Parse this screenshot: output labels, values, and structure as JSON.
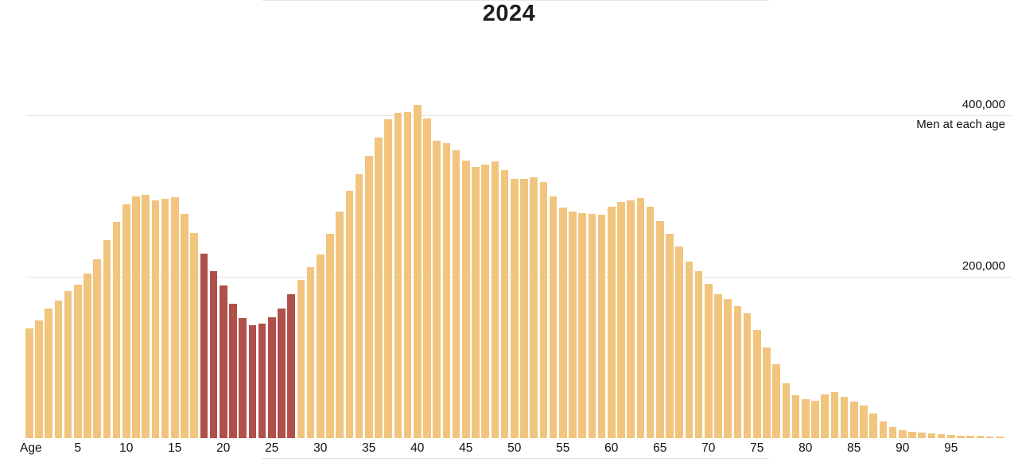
{
  "page": {
    "title": "2024"
  },
  "chart_data": {
    "type": "bar",
    "title": "2024",
    "x_axis_label": "Age",
    "series_label": "Men at each age",
    "x_ticks": [
      5,
      10,
      15,
      20,
      25,
      30,
      35,
      40,
      45,
      50,
      55,
      60,
      65,
      70,
      75,
      80,
      85,
      90,
      95
    ],
    "y_gridlines": [
      {
        "value": 200000,
        "label": "200,000"
      },
      {
        "value": 400000,
        "label": "400,000"
      }
    ],
    "xlim": [
      0,
      100
    ],
    "ylim": [
      0,
      433000
    ],
    "grid": true,
    "legend_position": "top-right",
    "age_start": 0,
    "highlight_age_range": [
      18,
      27
    ],
    "colors": {
      "bar": "#f1c57e",
      "highlight_bar": "#b0504b",
      "gridline": "#e2e2e2",
      "text": "#121212"
    },
    "values": [
      136000,
      146000,
      161000,
      170000,
      182000,
      190000,
      204000,
      222000,
      245000,
      268000,
      290000,
      300000,
      302000,
      295000,
      297000,
      299000,
      278000,
      254000,
      229000,
      207000,
      189000,
      167000,
      149000,
      140000,
      142000,
      150000,
      161000,
      178000,
      196000,
      212000,
      228000,
      253000,
      281000,
      306000,
      327000,
      350000,
      372000,
      395000,
      403000,
      404000,
      413000,
      396000,
      369000,
      366000,
      357000,
      344000,
      336000,
      339000,
      343000,
      332000,
      321000,
      321000,
      323000,
      317000,
      300000,
      286000,
      281000,
      279000,
      278000,
      277000,
      287000,
      293000,
      295000,
      298000,
      287000,
      269000,
      253000,
      237000,
      219000,
      207000,
      191000,
      178000,
      172000,
      164000,
      155000,
      134000,
      112000,
      92000,
      68000,
      53000,
      48000,
      46000,
      54000,
      57000,
      51000,
      45000,
      40000,
      31000,
      21000,
      14000,
      10000,
      8000,
      7000,
      6000,
      5000,
      4200,
      3300,
      3000,
      2600,
      2300,
      2000
    ]
  }
}
